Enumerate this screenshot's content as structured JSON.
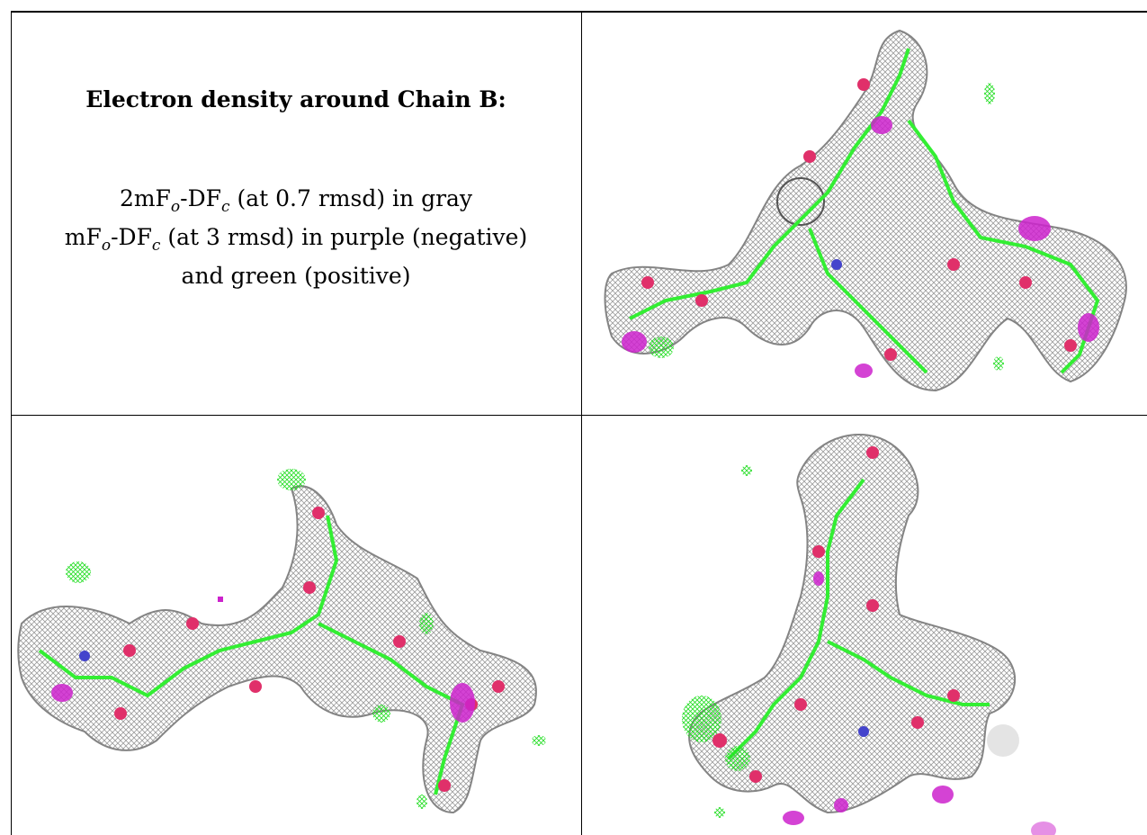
{
  "caption": {
    "title": "Electron density around Chain B:",
    "line1": {
      "lead": "2mF",
      "sub1": "o",
      "mid": "-DF",
      "sub2": "c",
      "tail": " (at 0.7 rmsd) in gray"
    },
    "line2": {
      "lead": "mF",
      "sub1": "o",
      "mid": "-DF",
      "sub2": "c",
      "tail": " (at 3 rmsd) in purple (negative)"
    },
    "line3": "and green (positive)"
  },
  "map_colors": {
    "density_2fofc": "#9a9a9a",
    "difference_negative": "#cc22cc",
    "difference_positive": "#33ee33",
    "oxygen_atom": "#e0306a",
    "nitrogen_atom": "#4444cc"
  }
}
